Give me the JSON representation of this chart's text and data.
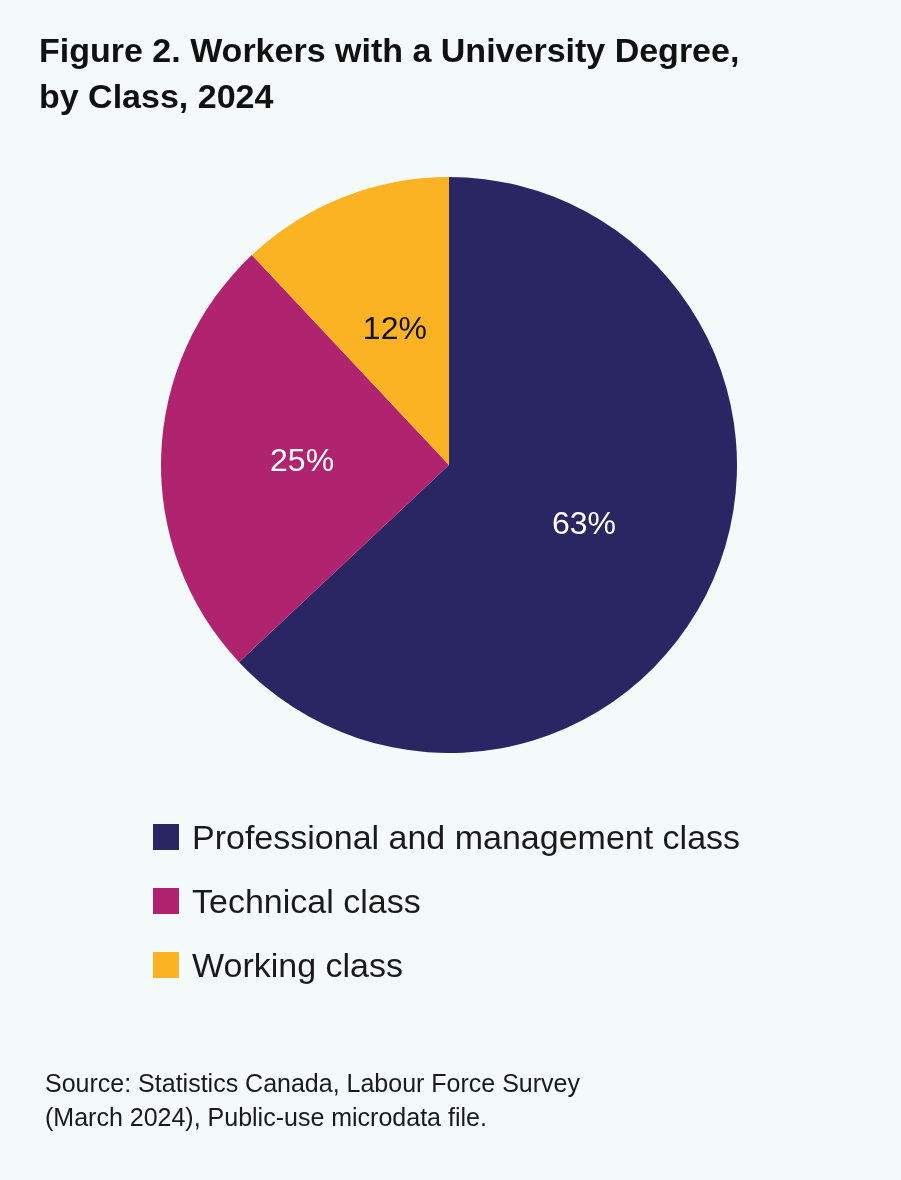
{
  "chart_data": {
    "type": "pie",
    "title": "Figure 2. Workers with a University Degree, by Class, 2024",
    "categories": [
      "Professional and management class",
      "Technical class",
      "Working class"
    ],
    "values": [
      63,
      25,
      12
    ],
    "colors": [
      "#2a2663",
      "#b0236e",
      "#fbb324"
    ],
    "value_labels": [
      "63%",
      "25%",
      "12%"
    ],
    "legend": "bottom",
    "annotations": [
      "Source: Statistics Canada, Labour Force Survey (March 2024), Public-use microdata file."
    ]
  }
}
